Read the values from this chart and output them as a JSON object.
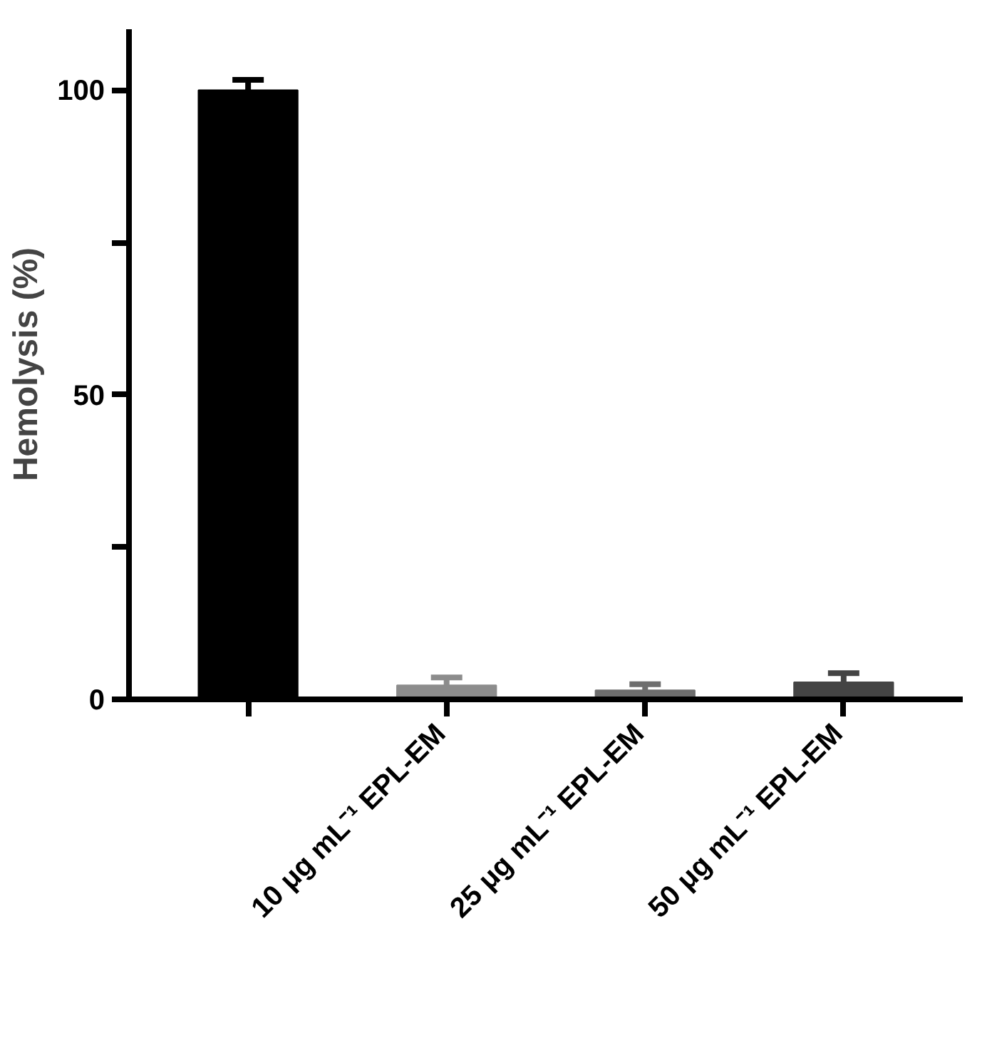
{
  "chart_data": {
    "type": "bar",
    "ylabel": "Hemolysis (%)",
    "categories": [
      null,
      "10 μg mL⁻¹  EPL-EM",
      "25 μg mL⁻¹  EPL-EM",
      "50 μg mL⁻¹  EPL-EM"
    ],
    "values": [
      100,
      2.3,
      1.5,
      2.8
    ],
    "errors": [
      1.7,
      1.3,
      1.0,
      1.5
    ],
    "colors": [
      "#000000",
      "#8c8c8c",
      "#6e6e6e",
      "#444444"
    ],
    "ylim": [
      0,
      110
    ],
    "yticks": [
      0,
      {
        "value": 25,
        "label": null
      },
      50,
      {
        "value": 75,
        "label": null
      },
      100
    ],
    "grid": false
  }
}
